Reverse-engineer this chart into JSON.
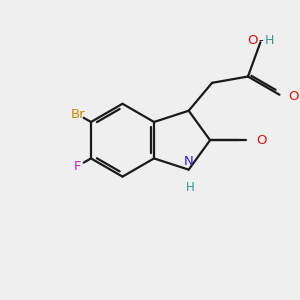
{
  "background_color": "#efefef",
  "bond_color": "#1a1a1a",
  "atom_colors": {
    "Br": "#cc8800",
    "F": "#cc22cc",
    "N": "#2020dd",
    "O": "#dd1111",
    "H_teal": "#2a9d8f"
  },
  "figsize": [
    3.0,
    3.0
  ],
  "dpi": 100,
  "lw": 1.6
}
